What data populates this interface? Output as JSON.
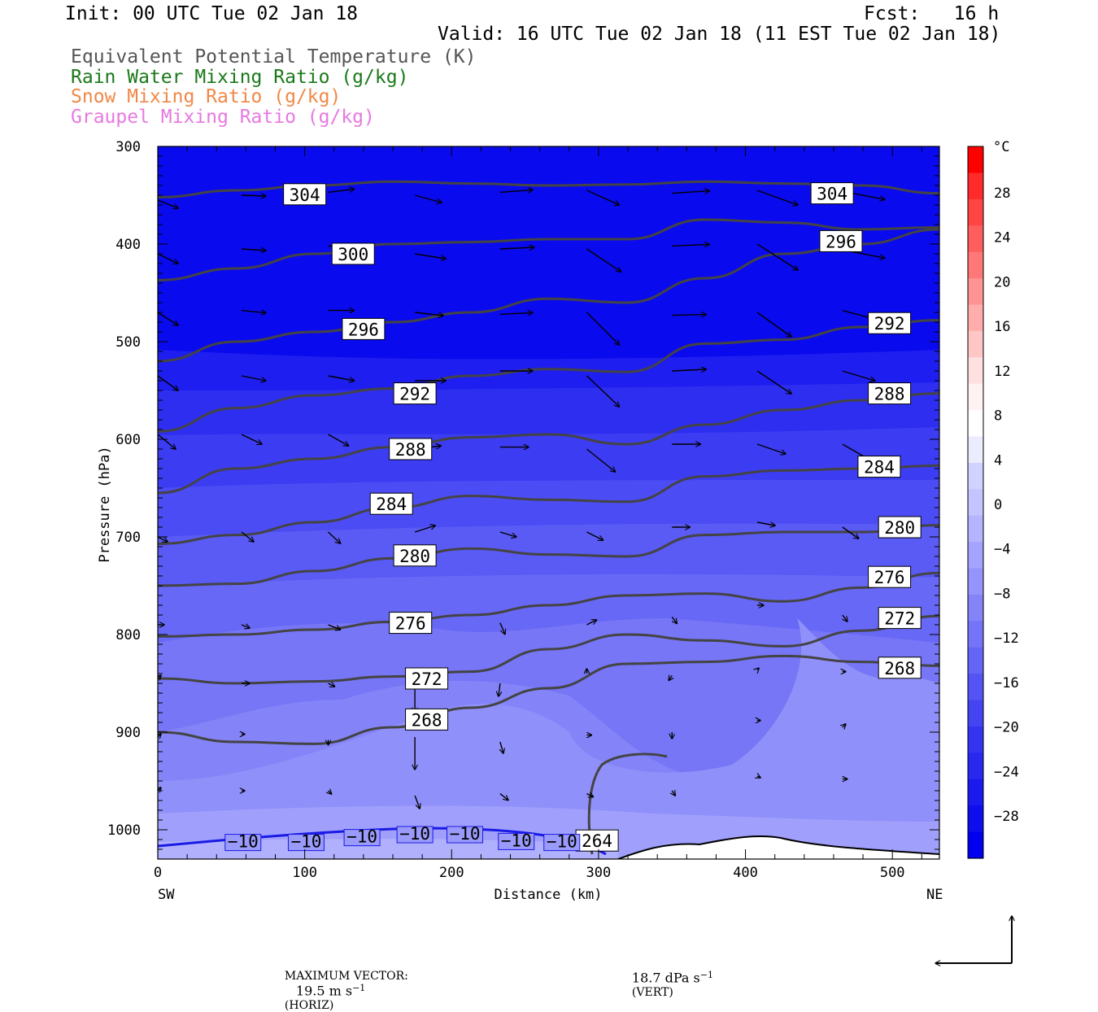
{
  "header": {
    "init": "Init: 00 UTC Tue 02 Jan 18",
    "fcst": "Fcst:   16 h",
    "valid": "Valid: 16 UTC Tue 02 Jan 18 (11 EST Tue 02 Jan 18)"
  },
  "legend": [
    {
      "label": "Equivalent Potential Temperature (K)",
      "color": "#555555"
    },
    {
      "label": "Rain Water Mixing Ratio (g/kg)",
      "color": "#1a7a1a"
    },
    {
      "label": "Snow Mixing Ratio (g/kg)",
      "color": "#f08848"
    },
    {
      "label": "Graupel Mixing Ratio (g/kg)",
      "color": "#e878e0"
    }
  ],
  "chart_data": {
    "type": "cross-section",
    "ylabel": "Pressure (hPa)",
    "xlabel": "Distance (km)",
    "x_end_labels": {
      "left": "SW",
      "right": "NE"
    },
    "ylim": [
      1030,
      300
    ],
    "xlim": [
      0,
      532
    ],
    "y_ticks": [
      "300",
      "400",
      "500",
      "600",
      "700",
      "800",
      "900",
      "1000"
    ],
    "x_ticks": [
      "0",
      "100",
      "200",
      "300",
      "400",
      "500"
    ],
    "theta_e_contours": [
      {
        "label": "304",
        "pressures": [
          352,
          345,
          340,
          336,
          338,
          340,
          339,
          336,
          338,
          340,
          348
        ],
        "label_positions": [
          {
            "x": 100,
            "p": 349
          },
          {
            "x": 459,
            "p": 348
          }
        ]
      },
      {
        "label": "300",
        "pressures": [
          437,
          425,
          410,
          400,
          398,
          395,
          395,
          375,
          378,
          385,
          383
        ],
        "label_positions": [
          {
            "x": 133,
            "p": 410
          }
        ]
      },
      {
        "label": "296",
        "pressures": [
          520,
          500,
          490,
          480,
          470,
          456,
          460,
          435,
          410,
          400,
          385
        ],
        "label_positions": [
          {
            "x": 140,
            "p": 487
          },
          {
            "x": 465,
            "p": 397
          }
        ]
      },
      {
        "label": "292",
        "pressures": [
          592,
          568,
          555,
          548,
          535,
          528,
          531,
          502,
          498,
          485,
          478
        ],
        "label_positions": [
          {
            "x": 175,
            "p": 553
          },
          {
            "x": 498,
            "p": 481
          }
        ]
      },
      {
        "label": "288",
        "pressures": [
          655,
          630,
          620,
          608,
          598,
          595,
          605,
          585,
          570,
          560,
          553
        ],
        "label_positions": [
          {
            "x": 172,
            "p": 610
          },
          {
            "x": 498,
            "p": 553
          }
        ]
      },
      {
        "label": "284",
        "pressures": [
          707,
          698,
          685,
          670,
          658,
          662,
          664,
          638,
          632,
          630,
          627
        ],
        "label_positions": [
          {
            "x": 159,
            "p": 666
          },
          {
            "x": 491,
            "p": 628
          }
        ]
      },
      {
        "label": "280",
        "pressures": [
          750,
          748,
          735,
          722,
          712,
          718,
          720,
          698,
          695,
          695,
          688
        ],
        "label_positions": [
          {
            "x": 175,
            "p": 719
          },
          {
            "x": 505,
            "p": 690
          }
        ]
      },
      {
        "label": "276",
        "pressures": [
          802,
          800,
          795,
          787,
          780,
          770,
          760,
          758,
          766,
          752,
          737
        ],
        "label_positions": [
          {
            "x": 172,
            "p": 788
          },
          {
            "x": 498,
            "p": 741
          }
        ]
      },
      {
        "label": "272",
        "pressures": [
          845,
          850,
          848,
          843,
          838,
          815,
          800,
          806,
          812,
          796,
          781
        ],
        "label_positions": [
          {
            "x": 183,
            "p": 845
          },
          {
            "x": 505,
            "p": 783
          }
        ]
      },
      {
        "label": "268",
        "pressures": [
          900,
          910,
          912,
          895,
          875,
          855,
          830,
          828,
          822,
          828,
          832
        ],
        "label_positions": [
          {
            "x": 183,
            "p": 887
          },
          {
            "x": 505,
            "p": 834
          }
        ]
      }
    ],
    "extra_contours": [
      {
        "label": "264",
        "label_positions": [
          {
            "x": 299,
            "p": 1011
          }
        ]
      },
      {
        "label": "−10",
        "label_positions": [
          {
            "x": 58,
            "p": 1013
          },
          {
            "x": 101,
            "p": 1013
          },
          {
            "x": 139,
            "p": 1008
          },
          {
            "x": 175,
            "p": 1005
          },
          {
            "x": 209,
            "p": 1005
          },
          {
            "x": 244,
            "p": 1012
          },
          {
            "x": 275,
            "p": 1013
          }
        ]
      }
    ],
    "temperature_colorbar": {
      "unit": "°C",
      "labels": [
        "28",
        "24",
        "20",
        "16",
        "12",
        "8",
        "4",
        "0",
        "−4",
        "−8",
        "−12",
        "−16",
        "−20",
        "−24",
        "−28"
      ],
      "colors": [
        "#ff0000",
        "#ff2a2a",
        "#ff4444",
        "#ff5e5e",
        "#ff7878",
        "#ff9292",
        "#ffacac",
        "#ffc6c6",
        "#ffe0e0",
        "#fff2f2",
        "#ffffff",
        "#ececff",
        "#d2d2ff",
        "#c4c4ff",
        "#b4b4ff",
        "#a4a4ff",
        "#9494fc",
        "#8484f8",
        "#7474f8",
        "#6464f6",
        "#5454f4",
        "#4444f2",
        "#3434f0",
        "#2828ee",
        "#1a1aee",
        "#0d0dee",
        "#0000ee"
      ]
    },
    "wind_vectors": [
      {
        "x": 0,
        "p": 355,
        "u": 25,
        "v": -10
      },
      {
        "x": 57,
        "p": 350,
        "u": 30,
        "v": -1
      },
      {
        "x": 116,
        "p": 347,
        "u": 32,
        "v": 4
      },
      {
        "x": 175,
        "p": 350,
        "u": 33,
        "v": -9
      },
      {
        "x": 233,
        "p": 347,
        "u": 40,
        "v": 3
      },
      {
        "x": 292,
        "p": 345,
        "u": 40,
        "v": -18
      },
      {
        "x": 350,
        "p": 348,
        "u": 46,
        "v": 3
      },
      {
        "x": 408,
        "p": 345,
        "u": 50,
        "v": -18
      },
      {
        "x": 466,
        "p": 346,
        "u": 52,
        "v": -10
      },
      {
        "x": 0,
        "p": 410,
        "u": 25,
        "v": -12
      },
      {
        "x": 57,
        "p": 405,
        "u": 30,
        "v": -2
      },
      {
        "x": 116,
        "p": 402,
        "u": 32,
        "v": 0
      },
      {
        "x": 175,
        "p": 410,
        "u": 38,
        "v": -6
      },
      {
        "x": 233,
        "p": 405,
        "u": 42,
        "v": 2
      },
      {
        "x": 292,
        "p": 405,
        "u": 42,
        "v": -28
      },
      {
        "x": 350,
        "p": 402,
        "u": 46,
        "v": 2
      },
      {
        "x": 408,
        "p": 400,
        "u": 50,
        "v": -32
      },
      {
        "x": 466,
        "p": 406,
        "u": 52,
        "v": -10
      },
      {
        "x": 0,
        "p": 470,
        "u": 25,
        "v": -16
      },
      {
        "x": 57,
        "p": 468,
        "u": 30,
        "v": -3
      },
      {
        "x": 116,
        "p": 468,
        "u": 32,
        "v": 0
      },
      {
        "x": 175,
        "p": 470,
        "u": 35,
        "v": -4
      },
      {
        "x": 233,
        "p": 472,
        "u": 40,
        "v": 2
      },
      {
        "x": 292,
        "p": 470,
        "u": 40,
        "v": -40
      },
      {
        "x": 350,
        "p": 473,
        "u": 42,
        "v": 1
      },
      {
        "x": 408,
        "p": 470,
        "u": 42,
        "v": -30
      },
      {
        "x": 466,
        "p": 468,
        "u": 45,
        "v": -12
      },
      {
        "x": 0,
        "p": 535,
        "u": 25,
        "v": -18
      },
      {
        "x": 57,
        "p": 535,
        "u": 30,
        "v": -6
      },
      {
        "x": 116,
        "p": 535,
        "u": 32,
        "v": -6
      },
      {
        "x": 175,
        "p": 540,
        "u": 38,
        "v": 0
      },
      {
        "x": 233,
        "p": 530,
        "u": 40,
        "v": 0
      },
      {
        "x": 292,
        "p": 535,
        "u": 40,
        "v": -38
      },
      {
        "x": 350,
        "p": 530,
        "u": 42,
        "v": 2
      },
      {
        "x": 408,
        "p": 530,
        "u": 42,
        "v": -28
      },
      {
        "x": 466,
        "p": 530,
        "u": 40,
        "v": -12
      },
      {
        "x": 0,
        "p": 595,
        "u": 22,
        "v": -18
      },
      {
        "x": 57,
        "p": 595,
        "u": 25,
        "v": -12
      },
      {
        "x": 116,
        "p": 595,
        "u": 25,
        "v": -14
      },
      {
        "x": 175,
        "p": 610,
        "u": 32,
        "v": 4
      },
      {
        "x": 233,
        "p": 608,
        "u": 35,
        "v": 0
      },
      {
        "x": 292,
        "p": 610,
        "u": 35,
        "v": -28
      },
      {
        "x": 350,
        "p": 605,
        "u": 35,
        "v": 0
      },
      {
        "x": 408,
        "p": 605,
        "u": 35,
        "v": -12
      },
      {
        "x": 466,
        "p": 605,
        "u": 35,
        "v": -20
      },
      {
        "x": 0,
        "p": 700,
        "u": 12,
        "v": -6
      },
      {
        "x": 57,
        "p": 695,
        "u": 15,
        "v": -12
      },
      {
        "x": 116,
        "p": 695,
        "u": 15,
        "v": -14
      },
      {
        "x": 175,
        "p": 695,
        "u": 25,
        "v": 8
      },
      {
        "x": 233,
        "p": 695,
        "u": 20,
        "v": -6
      },
      {
        "x": 292,
        "p": 695,
        "u": 20,
        "v": -10
      },
      {
        "x": 350,
        "p": 690,
        "u": 22,
        "v": 0
      },
      {
        "x": 408,
        "p": 685,
        "u": 22,
        "v": -4
      },
      {
        "x": 466,
        "p": 690,
        "u": 20,
        "v": -14
      },
      {
        "x": 0,
        "p": 790,
        "u": 8,
        "v": 0
      },
      {
        "x": 57,
        "p": 790,
        "u": 10,
        "v": -4
      },
      {
        "x": 116,
        "p": 790,
        "u": 15,
        "v": -6
      },
      {
        "x": 175,
        "p": 790,
        "u": 18,
        "v": 0
      },
      {
        "x": 233,
        "p": 788,
        "u": 6,
        "v": -14
      },
      {
        "x": 292,
        "p": 790,
        "u": 12,
        "v": 6
      },
      {
        "x": 350,
        "p": 782,
        "u": 6,
        "v": -8
      },
      {
        "x": 408,
        "p": 770,
        "u": 8,
        "v": 0
      },
      {
        "x": 466,
        "p": 780,
        "u": 6,
        "v": -8
      },
      {
        "x": 0,
        "p": 845,
        "u": 4,
        "v": 4
      },
      {
        "x": 57,
        "p": 850,
        "u": 10,
        "v": 0
      },
      {
        "x": 116,
        "p": 850,
        "u": 8,
        "v": -4
      },
      {
        "x": 175,
        "p": 850,
        "u": 0,
        "v": -36
      },
      {
        "x": 233,
        "p": 850,
        "u": -2,
        "v": -16
      },
      {
        "x": 292,
        "p": 840,
        "u": 0,
        "v": 6
      },
      {
        "x": 350,
        "p": 842,
        "u": -4,
        "v": -6
      },
      {
        "x": 408,
        "p": 836,
        "u": 2,
        "v": 2
      },
      {
        "x": 466,
        "p": 838,
        "u": 4,
        "v": 0
      },
      {
        "x": 0,
        "p": 905,
        "u": 4,
        "v": 4
      },
      {
        "x": 57,
        "p": 902,
        "u": 4,
        "v": 0
      },
      {
        "x": 116,
        "p": 908,
        "u": 0,
        "v": -6
      },
      {
        "x": 175,
        "p": 905,
        "u": 0,
        "v": -40
      },
      {
        "x": 233,
        "p": 910,
        "u": 4,
        "v": -14
      },
      {
        "x": 292,
        "p": 903,
        "u": 6,
        "v": 0
      },
      {
        "x": 350,
        "p": 900,
        "u": 0,
        "v": -8
      },
      {
        "x": 408,
        "p": 888,
        "u": 4,
        "v": 0
      },
      {
        "x": 466,
        "p": 895,
        "u": 4,
        "v": 4
      },
      {
        "x": 0,
        "p": 960,
        "u": 4,
        "v": 4
      },
      {
        "x": 57,
        "p": 960,
        "u": 4,
        "v": 0
      },
      {
        "x": 116,
        "p": 960,
        "u": 4,
        "v": -4
      },
      {
        "x": 175,
        "p": 965,
        "u": 6,
        "v": -16
      },
      {
        "x": 233,
        "p": 963,
        "u": 10,
        "v": -8
      },
      {
        "x": 292,
        "p": 963,
        "u": 8,
        "v": -4
      },
      {
        "x": 350,
        "p": 960,
        "u": 4,
        "v": -6
      },
      {
        "x": 408,
        "p": 945,
        "u": 4,
        "v": -2
      },
      {
        "x": 466,
        "p": 948,
        "u": 6,
        "v": 0
      }
    ]
  },
  "footer": {
    "max_vector_title": "MAXIMUM VECTOR:",
    "horiz_value": "19.5 m s",
    "horiz_exp": "−1",
    "horiz_tag": "(HORIZ)",
    "vert_value": "18.7 dPa s",
    "vert_exp": "−1",
    "vert_tag": "(VERT)"
  }
}
